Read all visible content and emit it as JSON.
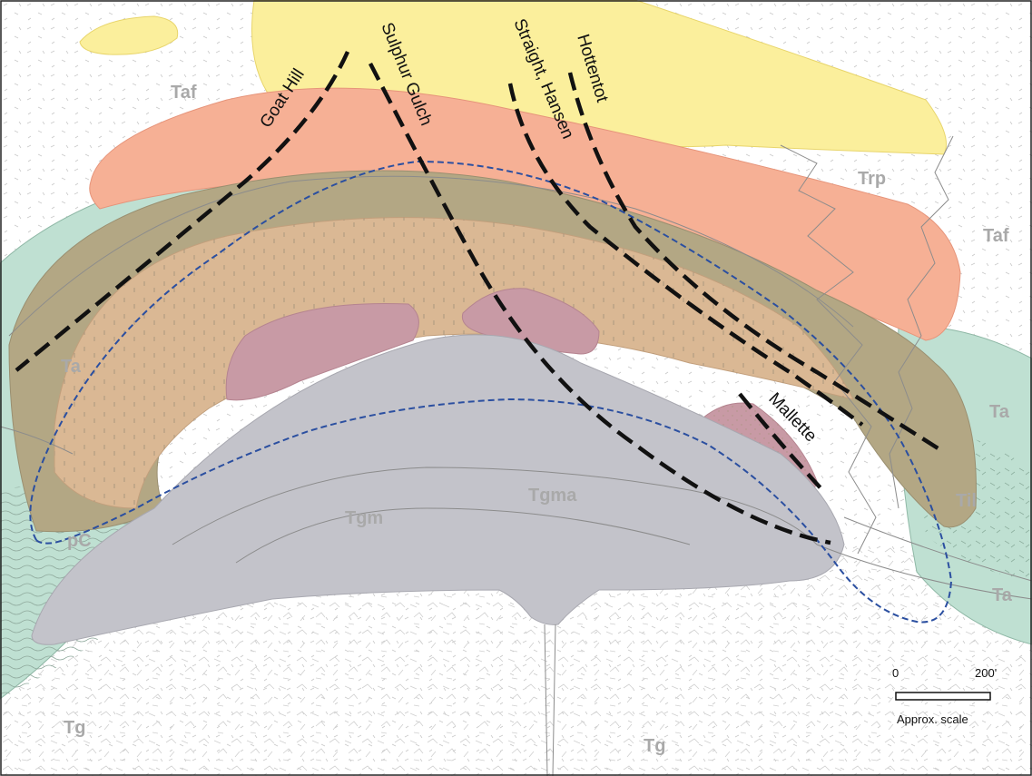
{
  "units": {
    "taf_top": "Taf",
    "taf_right": "Taf",
    "trp": "Trp",
    "ta_left": "Ta",
    "ta_right_top": "Ta",
    "ta_right_bottom": "Ta",
    "til": "Til",
    "pc": "pC",
    "tgm": "Tgm",
    "tgma": "Tgma",
    "tg_left": "Tg",
    "tg_center": "Tg"
  },
  "veins": {
    "goat_hill": "Goat Hill",
    "sulphur_gulch": "Sulphur Gulch",
    "straight_hansen": "Straight, Hansen",
    "hottentot": "Hottentot",
    "mallette": "Mallette"
  },
  "scale": {
    "zero": "0",
    "max": "200'",
    "caption": "Approx. scale"
  },
  "colors": {
    "yellow": "#fbef9c",
    "salmon": "#f6b095",
    "tan": "#dab894",
    "olive": "#b3a784",
    "green": "#bfe0d2",
    "gray": "#c3c3ca",
    "mauve": "#c89aa5",
    "vein": "#111111",
    "orebody": "#2b4fa0",
    "label": "#a9a9a9"
  }
}
